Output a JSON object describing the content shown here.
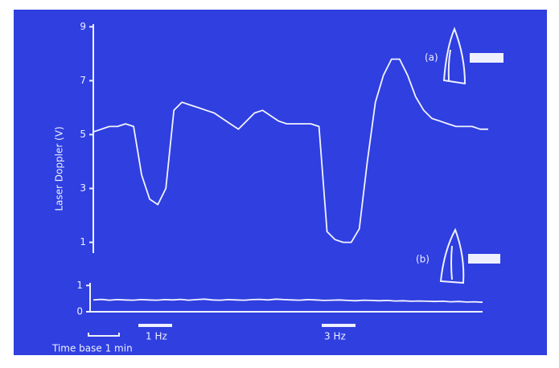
{
  "chart_data": [
    {
      "type": "line",
      "y_label": "Laser Doppler (V)",
      "ylim": [
        0.6,
        9.1
      ],
      "yticks": [
        1,
        3,
        5,
        7,
        9
      ],
      "series": [
        {
          "name": "(a)",
          "color": "#f2f3ff",
          "values": [
            5.1,
            5.2,
            5.3,
            5.3,
            5.4,
            5.3,
            3.5,
            2.6,
            2.4,
            3.0,
            5.9,
            6.2,
            6.1,
            6.0,
            5.9,
            5.8,
            5.6,
            5.4,
            5.2,
            5.5,
            5.8,
            5.9,
            5.7,
            5.5,
            5.4,
            5.4,
            5.4,
            5.4,
            5.3,
            1.4,
            1.1,
            1.0,
            1.0,
            1.5,
            4.0,
            6.2,
            7.2,
            7.8,
            7.8,
            7.2,
            6.4,
            5.9,
            5.6,
            5.5,
            5.4,
            5.3,
            5.3,
            5.3,
            5.2,
            5.2
          ]
        }
      ],
      "annotations": [
        "1 Hz",
        "3 Hz",
        "Time base 1 min"
      ]
    },
    {
      "type": "line",
      "ylim": [
        0,
        1.1
      ],
      "yticks": [
        0,
        1
      ],
      "series": [
        {
          "name": "(b)",
          "color": "#f2f3ff",
          "values": [
            0.45,
            0.47,
            0.44,
            0.46,
            0.45,
            0.44,
            0.46,
            0.45,
            0.44,
            0.46,
            0.45,
            0.47,
            0.44,
            0.46,
            0.48,
            0.45,
            0.44,
            0.46,
            0.45,
            0.44,
            0.46,
            0.47,
            0.45,
            0.48,
            0.46,
            0.45,
            0.44,
            0.46,
            0.45,
            0.43,
            0.44,
            0.45,
            0.43,
            0.42,
            0.44,
            0.43,
            0.42,
            0.43,
            0.41,
            0.42,
            0.4,
            0.41,
            0.4,
            0.39,
            0.4,
            0.38,
            0.39,
            0.37,
            0.38,
            0.36
          ]
        }
      ]
    }
  ]
}
